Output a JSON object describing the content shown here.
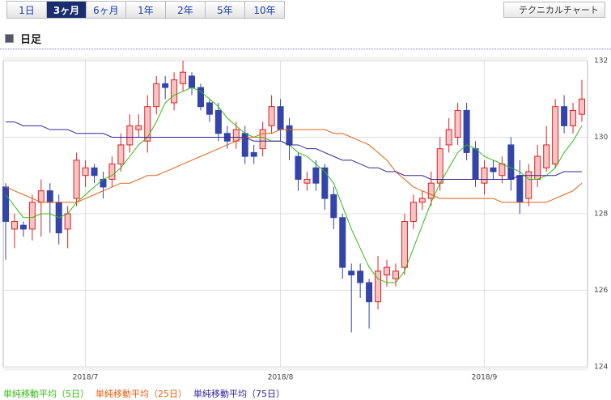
{
  "tabs": [
    "1日",
    "3ヶ月",
    "6ヶ月",
    "1年",
    "2年",
    "5年",
    "10年"
  ],
  "active_tab": 1,
  "button": "テクニカルチャート",
  "chart_data": {
    "type": "candlestick",
    "title": "日足",
    "categories": [
      null,
      null,
      null,
      null,
      null,
      null,
      null,
      null,
      null,
      "2018/7",
      null,
      null,
      null,
      null,
      null,
      null,
      null,
      null,
      null,
      null,
      null,
      null,
      null,
      null,
      null,
      null,
      null,
      null,
      null,
      null,
      null,
      "2018/8",
      null,
      null,
      null,
      null,
      null,
      null,
      null,
      null,
      null,
      null,
      null,
      null,
      null,
      null,
      null,
      null,
      null,
      null,
      null,
      null,
      null,
      null,
      "2018/9",
      null,
      null,
      null,
      null,
      null,
      null,
      null,
      null,
      null,
      null,
      null
    ],
    "open": [
      128.7,
      127.6,
      127.7,
      127.6,
      128.3,
      128.6,
      128.3,
      127.6,
      128.4,
      129.0,
      129.2,
      128.9,
      128.9,
      129.3,
      129.8,
      130.2,
      129.9,
      130.8,
      131.4,
      130.9,
      131.4,
      131.6,
      131.3,
      130.9,
      130.7,
      130.1,
      129.9,
      130.1,
      129.6,
      129.7,
      130.3,
      130.8,
      130.3,
      129.5,
      128.8,
      129.2,
      129.2,
      128.5,
      127.9,
      126.5,
      126.5,
      126.2,
      125.7,
      126.4,
      126.3,
      126.6,
      127.8,
      128.3,
      128.4,
      128.8,
      129.8,
      130.0,
      130.7,
      129.7,
      128.8,
      129.2,
      129.0,
      129.8,
      129.0,
      128.4,
      128.9,
      129.2,
      129.3,
      130.8,
      130.3,
      130.6
    ],
    "high": [
      128.8,
      128.0,
      127.8,
      128.5,
      128.9,
      128.8,
      128.5,
      128.2,
      129.6,
      129.4,
      129.3,
      129.1,
      129.5,
      130.1,
      130.6,
      130.6,
      131.1,
      131.6,
      131.6,
      131.7,
      132.0,
      131.7,
      131.4,
      131.0,
      130.9,
      130.3,
      130.4,
      130.3,
      129.8,
      130.4,
      131.1,
      131.0,
      130.5,
      129.6,
      129.1,
      129.4,
      129.3,
      128.7,
      128.0,
      126.7,
      126.7,
      126.3,
      126.9,
      126.8,
      126.7,
      128.0,
      128.5,
      128.6,
      129.1,
      130.0,
      130.5,
      130.9,
      130.9,
      129.9,
      129.4,
      129.4,
      129.5,
      130.0,
      129.4,
      129.3,
      129.8,
      130.3,
      131.0,
      131.1,
      130.9,
      131.5
    ],
    "low": [
      126.8,
      127.1,
      127.4,
      127.3,
      127.4,
      127.5,
      127.2,
      127.1,
      128.2,
      128.7,
      128.8,
      128.4,
      128.7,
      129.1,
      129.6,
      130.0,
      129.6,
      130.6,
      131.0,
      130.7,
      131.2,
      131.1,
      130.7,
      130.4,
      129.9,
      129.7,
      129.7,
      129.3,
      129.3,
      129.5,
      130.1,
      129.9,
      129.4,
      128.6,
      128.6,
      128.6,
      128.1,
      127.6,
      126.3,
      124.9,
      125.8,
      125.0,
      125.5,
      126.1,
      126.1,
      126.4,
      127.6,
      128.1,
      128.2,
      128.6,
      129.6,
      129.8,
      129.4,
      128.7,
      128.5,
      128.9,
      128.8,
      128.6,
      128.0,
      128.2,
      128.7,
      129.1,
      129.2,
      130.1,
      130.1,
      130.4
    ],
    "close": [
      127.8,
      127.8,
      127.6,
      128.3,
      128.6,
      128.3,
      127.5,
      128.0,
      129.4,
      129.2,
      129.0,
      128.7,
      129.3,
      129.8,
      130.3,
      130.3,
      130.8,
      131.4,
      131.3,
      131.5,
      131.7,
      131.3,
      130.8,
      130.6,
      130.1,
      129.9,
      130.2,
      129.5,
      129.5,
      130.2,
      130.8,
      130.2,
      129.8,
      128.9,
      128.9,
      128.8,
      128.4,
      127.9,
      126.6,
      126.4,
      126.2,
      125.7,
      126.5,
      126.6,
      126.5,
      127.8,
      128.3,
      128.4,
      128.8,
      129.7,
      130.2,
      130.7,
      129.6,
      128.9,
      129.2,
      129.1,
      129.3,
      128.9,
      128.3,
      129.1,
      129.5,
      129.8,
      130.8,
      130.3,
      130.7,
      131.0
    ],
    "up_color": "#dd2222",
    "up_fill": "#f6c4c4",
    "down_color": "#3344aa",
    "series": [
      {
        "name": "単純移動平均（5日）",
        "color": "#33bb11",
        "values": [
          128.5,
          128.2,
          127.9,
          127.9,
          128.0,
          128.0,
          127.9,
          128.0,
          128.3,
          128.5,
          128.7,
          128.9,
          129.0,
          129.2,
          129.5,
          129.8,
          130.0,
          130.4,
          130.9,
          131.1,
          131.2,
          131.3,
          131.2,
          131.0,
          130.8,
          130.5,
          130.3,
          130.1,
          130.0,
          130.0,
          129.9,
          129.9,
          129.8,
          129.6,
          129.5,
          129.3,
          129.1,
          128.8,
          128.2,
          127.6,
          127.1,
          126.6,
          126.3,
          126.2,
          126.2,
          126.5,
          127.1,
          127.7,
          128.3,
          128.8,
          129.2,
          129.6,
          129.8,
          129.7,
          129.5,
          129.4,
          129.3,
          129.2,
          129.1,
          128.9,
          128.9,
          129.0,
          129.2,
          129.6,
          129.9,
          130.3
        ]
      },
      {
        "name": "単純移動平均（25日）",
        "color": "#e06010",
        "values": [
          128.7,
          128.6,
          128.5,
          128.4,
          128.3,
          128.3,
          128.3,
          128.3,
          128.3,
          128.4,
          128.5,
          128.6,
          128.7,
          128.8,
          128.8,
          128.9,
          129.0,
          129.0,
          129.1,
          129.2,
          129.3,
          129.4,
          129.5,
          129.6,
          129.7,
          129.8,
          129.9,
          130.0,
          130.0,
          130.1,
          130.1,
          130.2,
          130.2,
          130.2,
          130.2,
          130.2,
          130.2,
          130.1,
          130.1,
          130.0,
          129.9,
          129.8,
          129.6,
          129.4,
          129.1,
          128.9,
          128.7,
          128.6,
          128.5,
          128.4,
          128.4,
          128.4,
          128.4,
          128.4,
          128.4,
          128.4,
          128.3,
          128.3,
          128.3,
          128.3,
          128.3,
          128.3,
          128.4,
          128.5,
          128.6,
          128.8
        ]
      },
      {
        "name": "単純移動平均（75日）",
        "color": "#332299",
        "values": [
          130.4,
          130.4,
          130.3,
          130.3,
          130.3,
          130.2,
          130.2,
          130.2,
          130.1,
          130.1,
          130.1,
          130.1,
          130.0,
          130.0,
          130.0,
          130.0,
          130.0,
          130.0,
          130.0,
          130.0,
          130.0,
          130.0,
          130.0,
          130.0,
          130.0,
          130.0,
          130.0,
          130.0,
          129.9,
          129.9,
          129.9,
          129.9,
          129.8,
          129.8,
          129.7,
          129.7,
          129.6,
          129.5,
          129.4,
          129.4,
          129.3,
          129.2,
          129.2,
          129.1,
          129.1,
          129.0,
          129.0,
          129.0,
          128.9,
          128.9,
          128.9,
          128.9,
          128.9,
          128.9,
          128.9,
          128.9,
          128.9,
          128.9,
          129.0,
          129.0,
          129.0,
          129.0,
          129.0,
          129.1,
          129.1,
          129.1
        ]
      }
    ],
    "ylim": [
      124,
      132
    ],
    "yticks": [
      124,
      126,
      128,
      130,
      132
    ],
    "grid": true
  }
}
